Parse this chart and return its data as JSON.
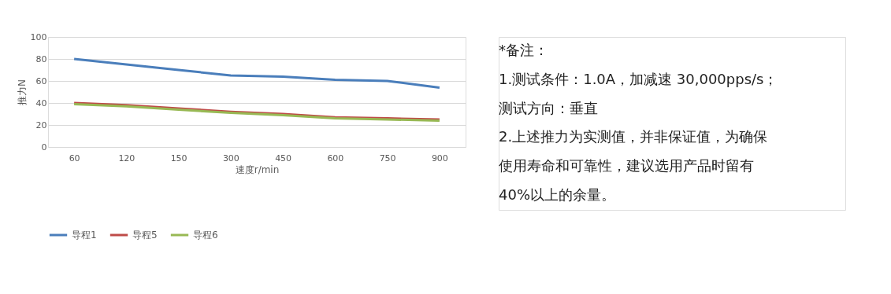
{
  "chart_data": {
    "type": "line",
    "xlabel": "速度r/min",
    "ylabel": "推力N",
    "categories": [
      "60",
      "120",
      "150",
      "300",
      "450",
      "600",
      "750",
      "900"
    ],
    "series": [
      {
        "name": "导程1",
        "color": "#4a7ebb",
        "values": [
          80,
          75,
          70,
          65,
          64,
          61,
          60,
          54
        ]
      },
      {
        "name": "导程5",
        "color": "#be4b48",
        "values": [
          40,
          38,
          35,
          32,
          30,
          27,
          26,
          25
        ]
      },
      {
        "name": "导程6",
        "color": "#98b954",
        "values": [
          39,
          37,
          34,
          31,
          29,
          26,
          25,
          24
        ]
      }
    ],
    "ylim": [
      0,
      100
    ],
    "yticks": [
      0,
      20,
      40,
      60,
      80,
      100
    ],
    "grid": "y",
    "legend": "bottom",
    "marker": "none",
    "line_style": "solid",
    "annotations": [
      "*备注：",
      "1.测试条件：1.0A，加减速 30,000pps/s；",
      "  测试方向：垂直",
      "2.上述推力为实测值，并非保证值，为确保",
      "  使用寿命和可靠性，建议选用产品时留有",
      "  40%以上的余量。"
    ]
  }
}
